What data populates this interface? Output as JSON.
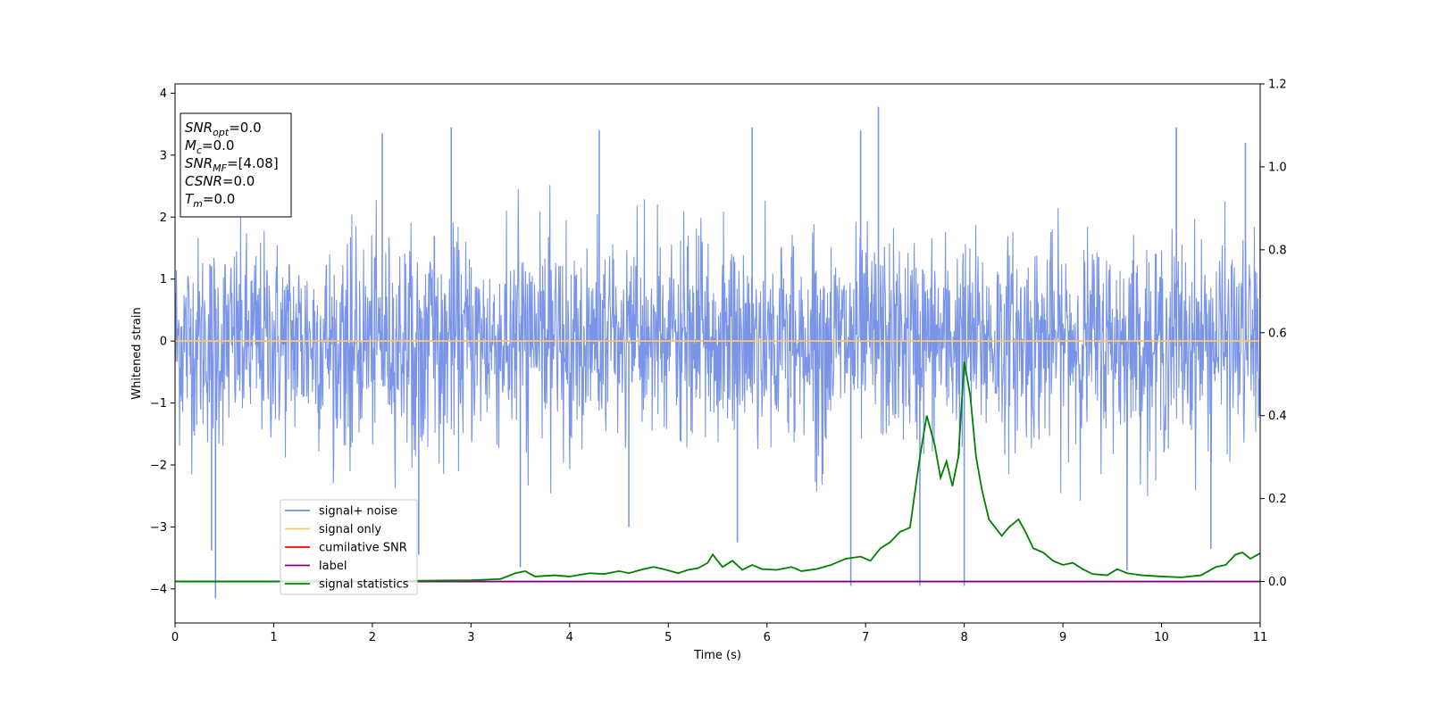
{
  "chart_data": {
    "type": "line",
    "xlabel": "Time (s)",
    "ylabel": "Whitened strain",
    "xlim": [
      0,
      11
    ],
    "ylim": [
      -4.55,
      4.15
    ],
    "y2lim": [
      -0.1,
      1.2
    ],
    "xticks": [
      "0",
      "1",
      "2",
      "3",
      "4",
      "5",
      "6",
      "7",
      "8",
      "9",
      "10",
      "11"
    ],
    "yticks": [
      "4",
      "3",
      "2",
      "1",
      "0",
      "−1",
      "−2",
      "−3",
      "−4"
    ],
    "y2ticks": [
      "1.2",
      "1.0",
      "0.8",
      "0.6",
      "0.4",
      "0.2",
      "0.0"
    ],
    "info_box": [
      {
        "main": "SNR",
        "sub": "opt",
        "value": "=0.0"
      },
      {
        "main": "M",
        "sub": "c",
        "value": "=0.0"
      },
      {
        "main": "SNR",
        "sub": "MF",
        "value": "=[4.08]"
      },
      {
        "main": "CSNR",
        "sub": "",
        "value": "=0.0"
      },
      {
        "main": "T",
        "sub": "m",
        "value": "=0.0"
      }
    ],
    "legend": {
      "placement": "lower-left",
      "entries": [
        {
          "label": "signal+ noise",
          "color": "#6f8ee6"
        },
        {
          "label": "signal only",
          "color": "#ffc76b"
        },
        {
          "label": "cumilative SNR",
          "color": "#ff0000"
        },
        {
          "label": "label",
          "color": "#800080"
        },
        {
          "label": "signal statistics",
          "color": "#008000"
        }
      ]
    },
    "series": [
      {
        "name": "signal+ noise",
        "axis": "left",
        "color": "#7a95e8",
        "kind": "noise",
        "range_t": [
          0,
          11
        ],
        "typical_amplitude": [
          -2.0,
          2.0
        ],
        "peaks": [
          {
            "t": 0.41,
            "y": -4.15
          },
          {
            "t": 0.37,
            "y": -3.38
          },
          {
            "t": 3.5,
            "y": -3.65
          },
          {
            "t": 2.47,
            "y": -3.45
          },
          {
            "t": 4.6,
            "y": -3.0
          },
          {
            "t": 5.7,
            "y": -3.25
          },
          {
            "t": 6.85,
            "y": -3.95
          },
          {
            "t": 7.55,
            "y": -3.95
          },
          {
            "t": 8.0,
            "y": -3.95
          },
          {
            "t": 9.65,
            "y": -3.7
          },
          {
            "t": 10.5,
            "y": -3.35
          },
          {
            "t": 7.13,
            "y": 3.78
          },
          {
            "t": 2.1,
            "y": 3.35
          },
          {
            "t": 2.8,
            "y": 3.45
          },
          {
            "t": 4.3,
            "y": 3.4
          },
          {
            "t": 5.85,
            "y": 3.45
          },
          {
            "t": 6.95,
            "y": 3.4
          },
          {
            "t": 10.15,
            "y": 3.45
          },
          {
            "t": 10.85,
            "y": 3.2
          },
          {
            "t": 11.0,
            "y": 2.9
          }
        ]
      },
      {
        "name": "signal only",
        "axis": "left",
        "color": "#ffc76b",
        "x": [
          0,
          11
        ],
        "y": [
          0,
          0
        ]
      },
      {
        "name": "label",
        "axis": "right",
        "color": "#800080",
        "x": [
          0,
          11
        ],
        "y": [
          0,
          0
        ]
      },
      {
        "name": "signal statistics",
        "axis": "right",
        "color": "#008000",
        "x": [
          0,
          0.5,
          1.0,
          1.5,
          2.0,
          2.5,
          3.0,
          3.3,
          3.45,
          3.55,
          3.65,
          3.85,
          4.0,
          4.1,
          4.2,
          4.35,
          4.5,
          4.6,
          4.75,
          4.85,
          4.95,
          5.1,
          5.2,
          5.3,
          5.4,
          5.45,
          5.55,
          5.65,
          5.75,
          5.85,
          5.95,
          6.1,
          6.25,
          6.35,
          6.5,
          6.65,
          6.8,
          6.95,
          7.05,
          7.15,
          7.25,
          7.35,
          7.45,
          7.55,
          7.62,
          7.7,
          7.76,
          7.82,
          7.88,
          7.94,
          8.0,
          8.06,
          8.12,
          8.18,
          8.25,
          8.38,
          8.45,
          8.55,
          8.62,
          8.7,
          8.8,
          8.9,
          9.0,
          9.1,
          9.2,
          9.3,
          9.45,
          9.55,
          9.65,
          9.8,
          10.0,
          10.2,
          10.4,
          10.55,
          10.65,
          10.75,
          10.82,
          10.9,
          11.0
        ],
        "y": [
          0,
          0,
          0,
          0,
          0,
          0.002,
          0.003,
          0.006,
          0.02,
          0.025,
          0.012,
          0.015,
          0.012,
          0.016,
          0.02,
          0.018,
          0.025,
          0.02,
          0.03,
          0.035,
          0.03,
          0.02,
          0.028,
          0.032,
          0.045,
          0.065,
          0.035,
          0.05,
          0.028,
          0.04,
          0.03,
          0.028,
          0.035,
          0.025,
          0.03,
          0.04,
          0.055,
          0.06,
          0.05,
          0.08,
          0.095,
          0.12,
          0.13,
          0.3,
          0.4,
          0.33,
          0.25,
          0.29,
          0.23,
          0.3,
          0.53,
          0.45,
          0.3,
          0.22,
          0.15,
          0.11,
          0.13,
          0.15,
          0.12,
          0.08,
          0.07,
          0.05,
          0.04,
          0.045,
          0.03,
          0.018,
          0.015,
          0.03,
          0.02,
          0.015,
          0.012,
          0.01,
          0.015,
          0.035,
          0.04,
          0.065,
          0.07,
          0.055,
          0.068
        ]
      }
    ]
  }
}
